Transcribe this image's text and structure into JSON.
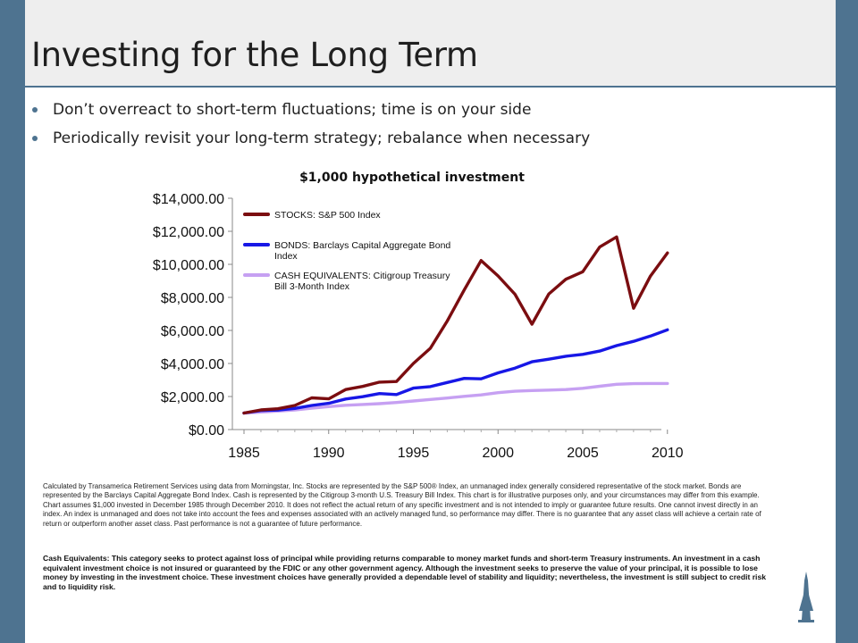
{
  "slide": {
    "title": "Investing for the Long Term",
    "bullets": [
      "Don’t overreact to short-term fluctuations; time is on your side",
      "Periodically revisit your long-term strategy; rebalance when necessary"
    ],
    "disclaimer": "Calculated by Transamerica Retirement Services using data from Morningstar, Inc. Stocks are represented by the S&P 500® Index, an unmanaged index generally considered representative of the stock market. Bonds are represented by the Barclays Capital Aggregate Bond Index. Cash is represented by the Citigroup 3-month U.S. Treasury Bill Index. This chart is for illustrative purposes only, and your circumstances may differ from this example. Chart assumes $1,000 invested in December 1985 through December 2010. It does not reflect the actual return of any specific investment and is not intended to imply or guarantee future results. One cannot invest directly in an index. An index is unmanaged and does not take into account the fees and expenses associated with an actively managed fund, so performance may differ. There is no guarantee that any asset class will achieve a certain rate of return or outperform another asset class. Past performance is not a guarantee of future performance.",
    "cash_note": "Cash Equivalents: This category seeks to protect against loss of principal while providing returns comparable to money market funds and short-term Treasury instruments. An investment in a cash equivalent investment choice is not insured or guaranteed by the FDIC or any other government agency. Although the investment seeks to preserve the value of your principal, it is possible to lose money by investing in the investment choice. These investment choices have generally provided a dependable level of stability and liquidity; nevertheless, the investment is still subject to credit risk and to liquidity risk."
  },
  "colors": {
    "frame": "#4e7390",
    "title_band": "#eeeeee",
    "stocks": "#7b0d10",
    "bonds": "#1717e6",
    "cash": "#c6a0f2"
  },
  "chart_data": {
    "type": "line",
    "title": "$1,000 hypothetical investment",
    "xlabel": "",
    "ylabel": "",
    "xlim": [
      1985,
      2010
    ],
    "ylim": [
      0,
      14000
    ],
    "y_ticks": [
      0,
      2000,
      4000,
      6000,
      8000,
      10000,
      12000,
      14000
    ],
    "y_tick_labels": [
      "$0.00",
      "$2,000.00",
      "$4,000.00",
      "$6,000.00",
      "$8,000.00",
      "$10,000.00",
      "$12,000.00",
      "$14,000.00"
    ],
    "x_ticks": [
      1985,
      1990,
      1995,
      2000,
      2005,
      2010
    ],
    "x_tick_labels": [
      "1985",
      "1990",
      "1995",
      "2000",
      "2005",
      "2010"
    ],
    "legend_position": "top-left",
    "grid": false,
    "series": [
      {
        "name": "STOCKS: S&P 500 Index",
        "legend_lines": [
          "STOCKS: S&P 500 Index"
        ],
        "color": "#7b0d10",
        "points": [
          [
            1985,
            1000
          ],
          [
            1986,
            1190
          ],
          [
            1987,
            1260
          ],
          [
            1988,
            1460
          ],
          [
            1989,
            1920
          ],
          [
            1990,
            1860
          ],
          [
            1991,
            2420
          ],
          [
            1992,
            2610
          ],
          [
            1993,
            2870
          ],
          [
            1994,
            2910
          ],
          [
            1995,
            4000
          ],
          [
            1996,
            4920
          ],
          [
            1997,
            6570
          ],
          [
            1998,
            8450
          ],
          [
            1999,
            10230
          ],
          [
            2000,
            9300
          ],
          [
            2001,
            8190
          ],
          [
            2002,
            6380
          ],
          [
            2003,
            8210
          ],
          [
            2004,
            9100
          ],
          [
            2005,
            9550
          ],
          [
            2006,
            11050
          ],
          [
            2007,
            11660
          ],
          [
            2008,
            7340
          ],
          [
            2009,
            9290
          ],
          [
            2010,
            10690
          ]
        ]
      },
      {
        "name": "BONDS: Barclays Capital Aggregate Bond Index",
        "legend_lines": [
          "BONDS: Barclays Capital Aggregate Bond",
          "Index"
        ],
        "color": "#1717e6",
        "points": [
          [
            1985,
            1000
          ],
          [
            1986,
            1150
          ],
          [
            1987,
            1180
          ],
          [
            1988,
            1280
          ],
          [
            1989,
            1460
          ],
          [
            1990,
            1590
          ],
          [
            1991,
            1850
          ],
          [
            1992,
            1990
          ],
          [
            1993,
            2180
          ],
          [
            1994,
            2120
          ],
          [
            1995,
            2510
          ],
          [
            1996,
            2600
          ],
          [
            1997,
            2850
          ],
          [
            1998,
            3100
          ],
          [
            1999,
            3070
          ],
          [
            2000,
            3430
          ],
          [
            2001,
            3720
          ],
          [
            2002,
            4100
          ],
          [
            2003,
            4260
          ],
          [
            2004,
            4440
          ],
          [
            2005,
            4550
          ],
          [
            2006,
            4750
          ],
          [
            2007,
            5080
          ],
          [
            2008,
            5340
          ],
          [
            2009,
            5660
          ],
          [
            2010,
            6040
          ]
        ]
      },
      {
        "name": "CASH EQUIVALENTS: Citigroup Treasury Bill 3-Month Index",
        "legend_lines": [
          "CASH EQUIVALENTS: Citigroup Treasury",
          "Bill 3-Month Index"
        ],
        "color": "#c6a0f2",
        "points": [
          [
            1985,
            1000
          ],
          [
            1986,
            1060
          ],
          [
            1987,
            1120
          ],
          [
            1988,
            1190
          ],
          [
            1989,
            1290
          ],
          [
            1990,
            1390
          ],
          [
            1991,
            1470
          ],
          [
            1992,
            1520
          ],
          [
            1993,
            1570
          ],
          [
            1994,
            1640
          ],
          [
            1995,
            1730
          ],
          [
            1996,
            1820
          ],
          [
            1997,
            1910
          ],
          [
            1998,
            2010
          ],
          [
            1999,
            2100
          ],
          [
            2000,
            2230
          ],
          [
            2001,
            2320
          ],
          [
            2002,
            2360
          ],
          [
            2003,
            2390
          ],
          [
            2004,
            2420
          ],
          [
            2005,
            2500
          ],
          [
            2006,
            2620
          ],
          [
            2007,
            2740
          ],
          [
            2008,
            2780
          ],
          [
            2009,
            2790
          ],
          [
            2010,
            2790
          ]
        ]
      }
    ]
  }
}
